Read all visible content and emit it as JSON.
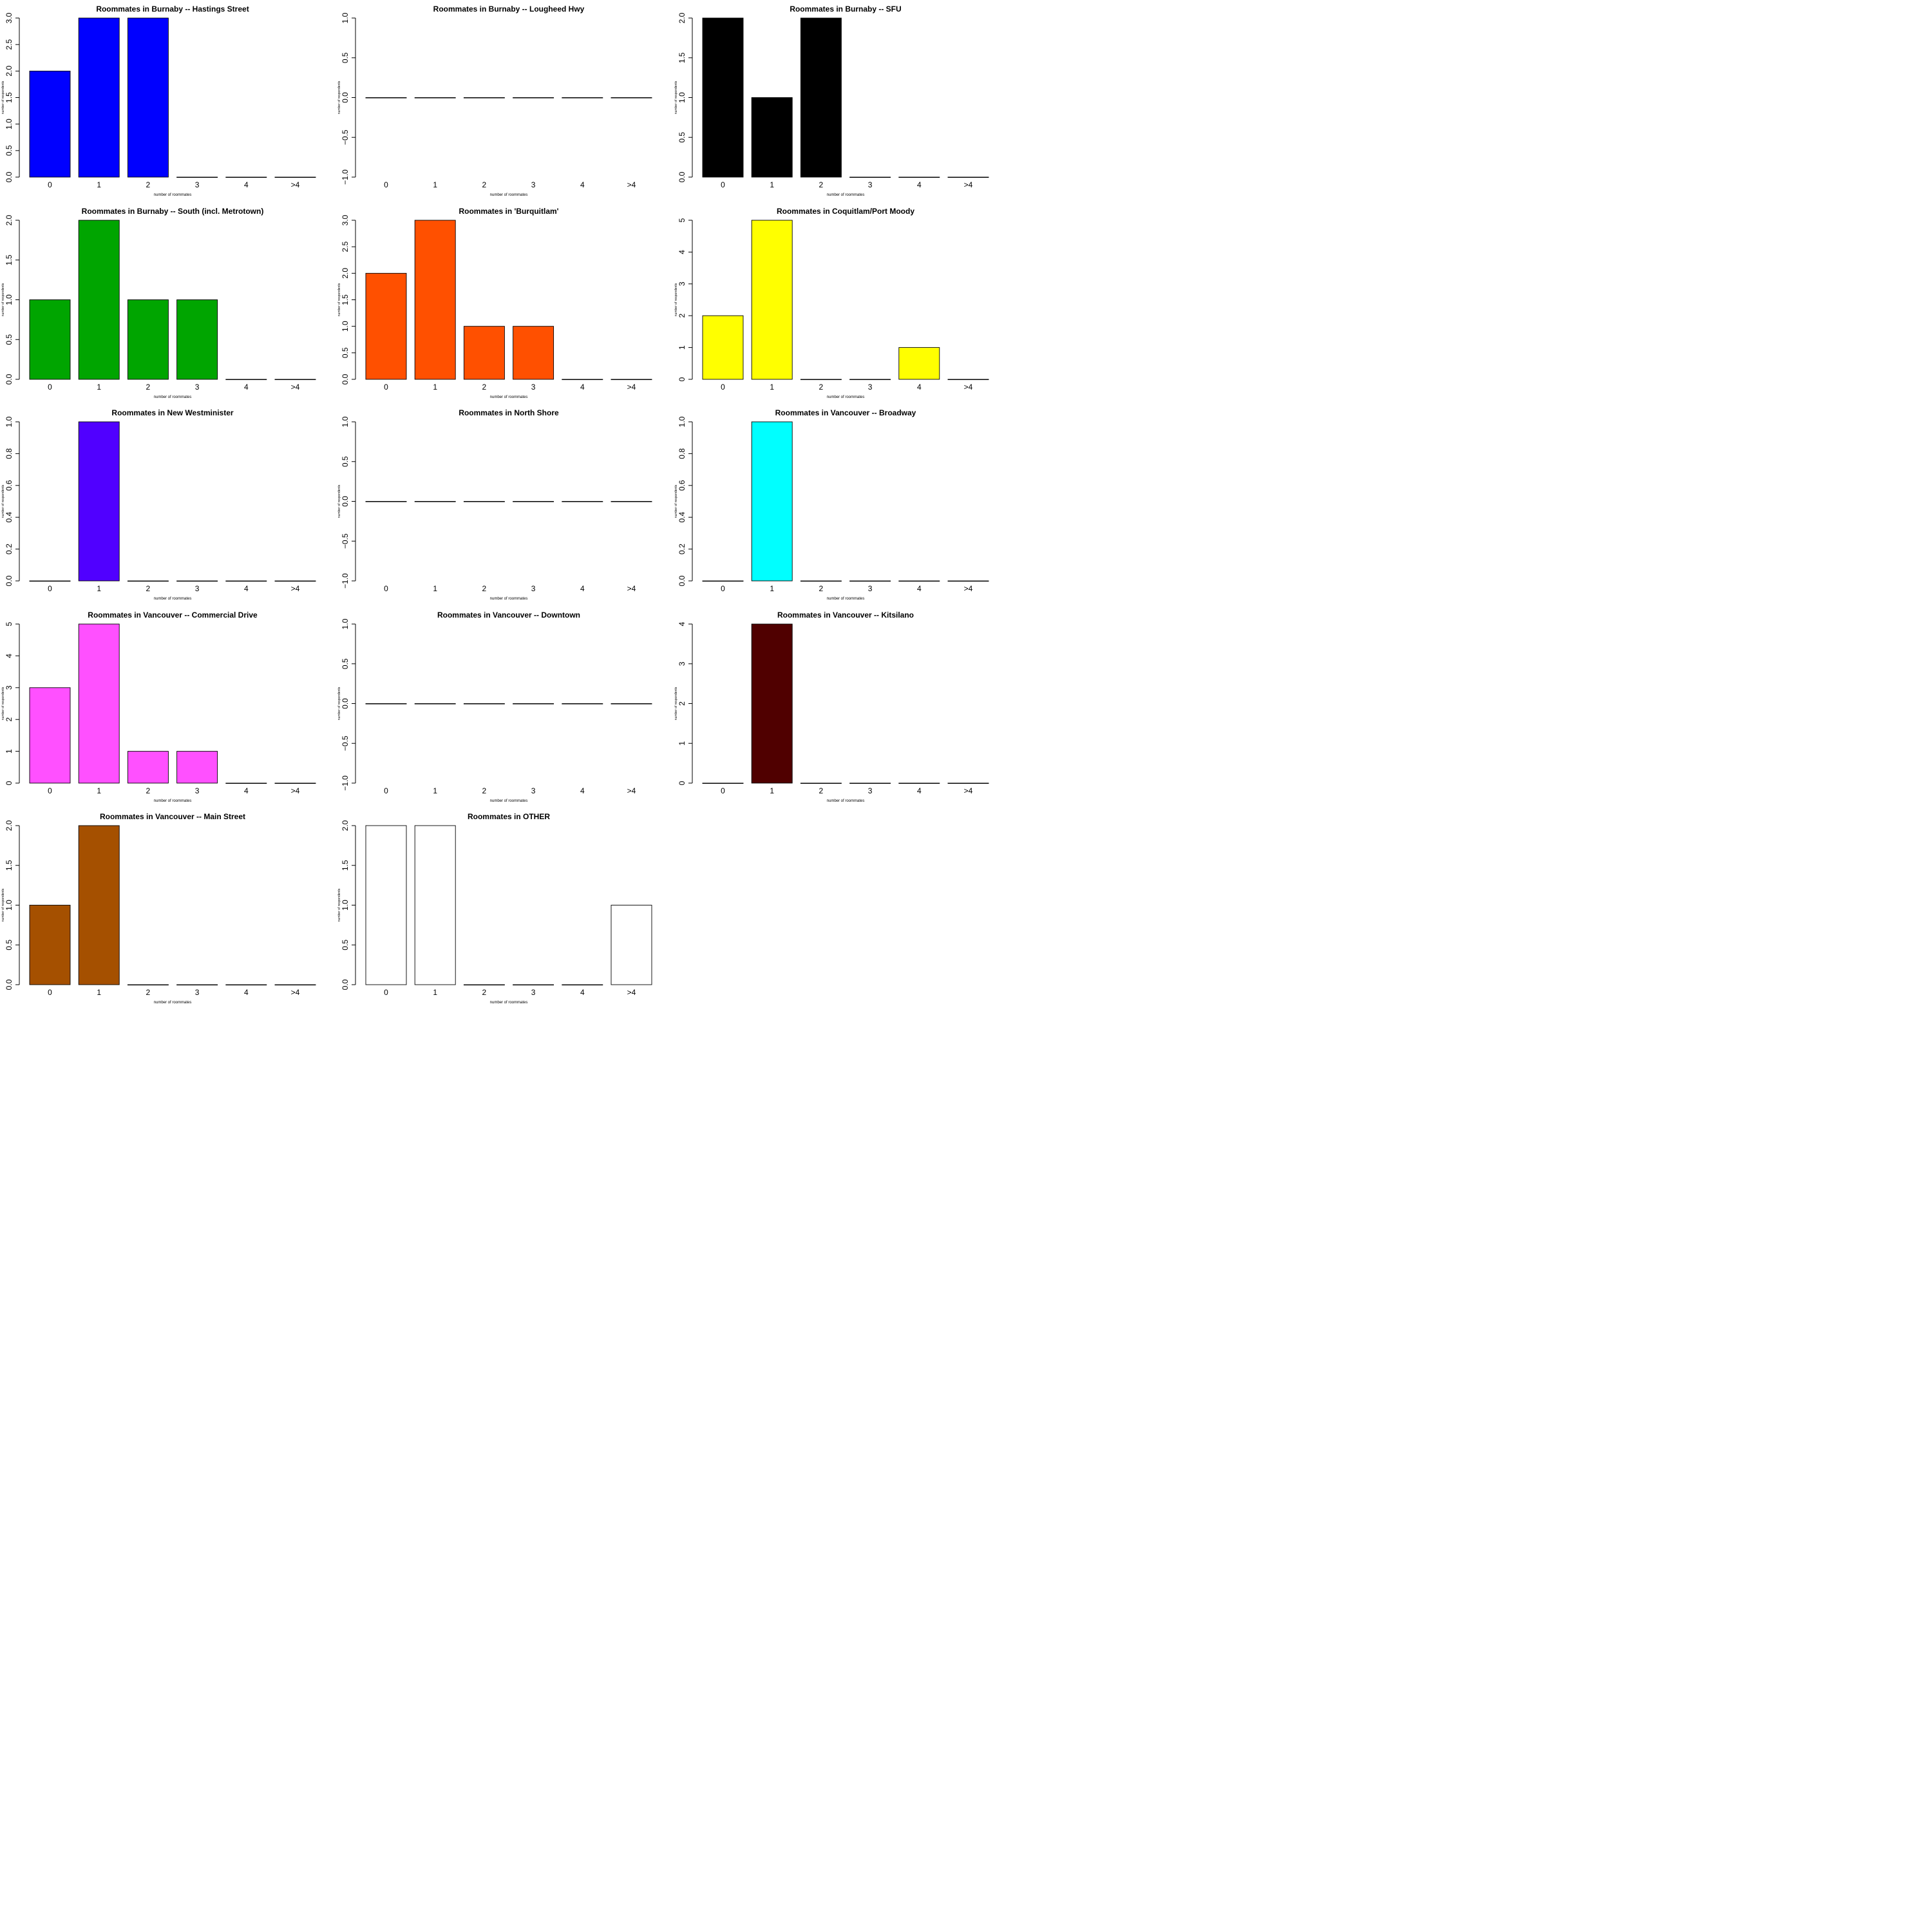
{
  "chart_data": [
    {
      "type": "bar",
      "title": "Roommates in Burnaby -- Hastings Street",
      "xlabel": "number of roommates",
      "ylabel": "number of respondents",
      "categories": [
        "0",
        "1",
        "2",
        "3",
        "4",
        ">4"
      ],
      "values": [
        2,
        3,
        3,
        0,
        0,
        0
      ],
      "ylim": [
        0,
        3
      ],
      "yticks": [
        "0.0",
        "0.5",
        "1.0",
        "1.5",
        "2.0",
        "2.5",
        "3.0"
      ],
      "color": "#0000FF"
    },
    {
      "type": "bar",
      "title": "Roommates in Burnaby -- Lougheed Hwy",
      "xlabel": "number of roommates",
      "ylabel": "number of respondents",
      "categories": [
        "0",
        "1",
        "2",
        "3",
        "4",
        ">4"
      ],
      "values": [
        0,
        0,
        0,
        0,
        0,
        0
      ],
      "ylim": [
        -1,
        1
      ],
      "yticks": [
        "−1.0",
        "−0.5",
        "0.0",
        "0.5",
        "1.0"
      ],
      "color": "#000000"
    },
    {
      "type": "bar",
      "title": "Roommates in Burnaby -- SFU",
      "xlabel": "number of roommates",
      "ylabel": "number of respondents",
      "categories": [
        "0",
        "1",
        "2",
        "3",
        "4",
        ">4"
      ],
      "values": [
        2,
        1,
        2,
        0,
        0,
        0
      ],
      "ylim": [
        0,
        2
      ],
      "yticks": [
        "0.0",
        "0.5",
        "1.0",
        "1.5",
        "2.0"
      ],
      "color": "#000000"
    },
    {
      "type": "bar",
      "title": "Roommates in Burnaby -- South (incl. Metrotown)",
      "xlabel": "number of roommates",
      "ylabel": "number of respondents",
      "categories": [
        "0",
        "1",
        "2",
        "3",
        "4",
        ">4"
      ],
      "values": [
        1,
        2,
        1,
        1,
        0,
        0
      ],
      "ylim": [
        0,
        2
      ],
      "yticks": [
        "0.0",
        "0.5",
        "1.0",
        "1.5",
        "2.0"
      ],
      "color": "#00A500"
    },
    {
      "type": "bar",
      "title": "Roommates in 'Burquitlam'",
      "xlabel": "number of roommates",
      "ylabel": "number of respondents",
      "categories": [
        "0",
        "1",
        "2",
        "3",
        "4",
        ">4"
      ],
      "values": [
        2,
        3,
        1,
        1,
        0,
        0
      ],
      "ylim": [
        0,
        3
      ],
      "yticks": [
        "0.0",
        "0.5",
        "1.0",
        "1.5",
        "2.0",
        "2.5",
        "3.0"
      ],
      "color": "#FF5000"
    },
    {
      "type": "bar",
      "title": "Roommates in Coquitlam/Port Moody",
      "xlabel": "number of roommates",
      "ylabel": "number of respondents",
      "categories": [
        "0",
        "1",
        "2",
        "3",
        "4",
        ">4"
      ],
      "values": [
        2,
        5,
        0,
        0,
        1,
        0
      ],
      "ylim": [
        0,
        5
      ],
      "yticks": [
        "0",
        "1",
        "2",
        "3",
        "4",
        "5"
      ],
      "color": "#FFFF00"
    },
    {
      "type": "bar",
      "title": "Roommates in New Westminister",
      "xlabel": "number of roommates",
      "ylabel": "number of respondents",
      "categories": [
        "0",
        "1",
        "2",
        "3",
        "4",
        ">4"
      ],
      "values": [
        0,
        1,
        0,
        0,
        0,
        0
      ],
      "ylim": [
        0,
        1
      ],
      "yticks": [
        "0.0",
        "0.2",
        "0.4",
        "0.6",
        "0.8",
        "1.0"
      ],
      "color": "#5000FF"
    },
    {
      "type": "bar",
      "title": "Roommates in North Shore",
      "xlabel": "number of roommates",
      "ylabel": "number of respondents",
      "categories": [
        "0",
        "1",
        "2",
        "3",
        "4",
        ">4"
      ],
      "values": [
        0,
        0,
        0,
        0,
        0,
        0
      ],
      "ylim": [
        -1,
        1
      ],
      "yticks": [
        "−1.0",
        "−0.5",
        "0.0",
        "0.5",
        "1.0"
      ],
      "color": "#000000"
    },
    {
      "type": "bar",
      "title": "Roommates in Vancouver -- Broadway",
      "xlabel": "number of roommates",
      "ylabel": "number of respondents",
      "categories": [
        "0",
        "1",
        "2",
        "3",
        "4",
        ">4"
      ],
      "values": [
        0,
        1,
        0,
        0,
        0,
        0
      ],
      "ylim": [
        0,
        1
      ],
      "yticks": [
        "0.0",
        "0.2",
        "0.4",
        "0.6",
        "0.8",
        "1.0"
      ],
      "color": "#00FFFF"
    },
    {
      "type": "bar",
      "title": "Roommates in Vancouver -- Commercial Drive",
      "xlabel": "number of roommates",
      "ylabel": "number of respondents",
      "categories": [
        "0",
        "1",
        "2",
        "3",
        "4",
        ">4"
      ],
      "values": [
        3,
        5,
        1,
        1,
        0,
        0
      ],
      "ylim": [
        0,
        5
      ],
      "yticks": [
        "0",
        "1",
        "2",
        "3",
        "4",
        "5"
      ],
      "color": "#FF50FF"
    },
    {
      "type": "bar",
      "title": "Roommates in Vancouver -- Downtown",
      "xlabel": "number of roommates",
      "ylabel": "number of respondents",
      "categories": [
        "0",
        "1",
        "2",
        "3",
        "4",
        ">4"
      ],
      "values": [
        0,
        0,
        0,
        0,
        0,
        0
      ],
      "ylim": [
        -1,
        1
      ],
      "yticks": [
        "−1.0",
        "−0.5",
        "0.0",
        "0.5",
        "1.0"
      ],
      "color": "#000000"
    },
    {
      "type": "bar",
      "title": "Roommates in Vancouver -- Kitsilano",
      "xlabel": "number of roommates",
      "ylabel": "number of respondents",
      "categories": [
        "0",
        "1",
        "2",
        "3",
        "4",
        ">4"
      ],
      "values": [
        0,
        4,
        0,
        0,
        0,
        0
      ],
      "ylim": [
        0,
        4
      ],
      "yticks": [
        "0",
        "1",
        "2",
        "3",
        "4"
      ],
      "color": "#500000"
    },
    {
      "type": "bar",
      "title": "Roommates in Vancouver -- Main Street",
      "xlabel": "number of roommates",
      "ylabel": "number of respondents",
      "categories": [
        "0",
        "1",
        "2",
        "3",
        "4",
        ">4"
      ],
      "values": [
        1,
        2,
        0,
        0,
        0,
        0
      ],
      "ylim": [
        0,
        2
      ],
      "yticks": [
        "0.0",
        "0.5",
        "1.0",
        "1.5",
        "2.0"
      ],
      "color": "#A55000"
    },
    {
      "type": "bar",
      "title": "Roommates in OTHER",
      "xlabel": "number of roommates",
      "ylabel": "number of respondents",
      "categories": [
        "0",
        "1",
        "2",
        "3",
        "4",
        ">4"
      ],
      "values": [
        2,
        2,
        0,
        0,
        0,
        1
      ],
      "ylim": [
        0,
        2
      ],
      "yticks": [
        "0.0",
        "0.5",
        "1.0",
        "1.5",
        "2.0"
      ],
      "color": "#FFFFFF"
    }
  ]
}
